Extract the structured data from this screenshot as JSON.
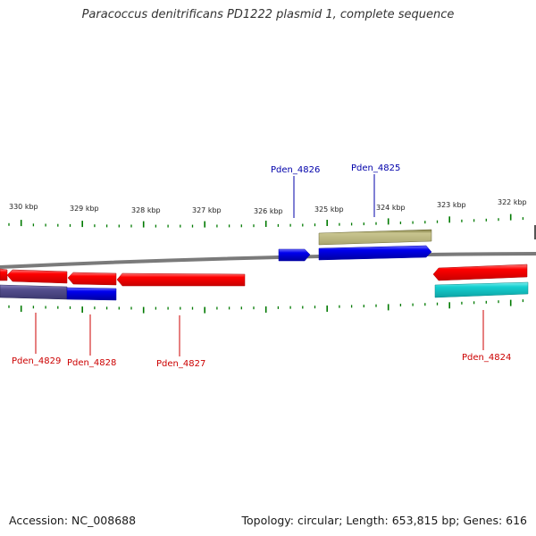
{
  "title": "Paracoccus denitrificans PD1222 plasmid 1, complete sequence",
  "footer": {
    "accession": "Accession: NC_008688",
    "summary": "Topology: circular; Length: 653,815 bp; Genes: 616"
  },
  "ruler": {
    "labels": [
      "330 kbp",
      "329 kbp",
      "328 kbp",
      "327 kbp",
      "326 kbp",
      "325 kbp",
      "324 kbp",
      "323 kbp",
      "322 kbp"
    ]
  },
  "genes": {
    "top": [
      "Pden_4826",
      "Pden_4825"
    ],
    "bottom": [
      "Pden_4829",
      "Pden_4828",
      "Pden_4827",
      "Pden_4824"
    ]
  },
  "colors": {
    "cds": "#ff0000",
    "gene_blue": "#0000ee",
    "olive": "#b9b57f",
    "slate": "#55508f",
    "cyan": "#16cfd0",
    "tick": "#007a00",
    "label_top": "#0000aa",
    "label_bottom": "#cc0000",
    "backbone": "#7a7a7a"
  }
}
